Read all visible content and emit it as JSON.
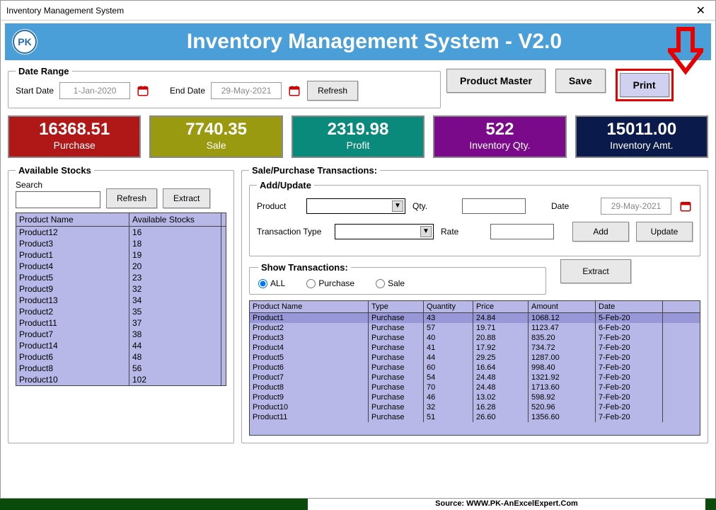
{
  "window": {
    "title": "Inventory Management System"
  },
  "banner": {
    "title": "Inventory Management System - V2.0"
  },
  "dateRange": {
    "legend": "Date Range",
    "startLabel": "Start Date",
    "startValue": "1-Jan-2020",
    "endLabel": "End Date",
    "endValue": "29-May-2021",
    "refresh": "Refresh"
  },
  "topButtons": {
    "productMaster": "Product Master",
    "save": "Save",
    "print": "Print"
  },
  "kpis": [
    {
      "value": "16368.51",
      "label": "Purchase",
      "bg": "#b01818"
    },
    {
      "value": "7740.35",
      "label": "Sale",
      "bg": "#9a9a10"
    },
    {
      "value": "2319.98",
      "label": "Profit",
      "bg": "#0a8a7a"
    },
    {
      "value": "522",
      "label": "Inventory Qty.",
      "bg": "#7a0a8a"
    },
    {
      "value": "15011.00",
      "label": "Inventory Amt.",
      "bg": "#0a1a4a"
    }
  ],
  "stocks": {
    "legend": "Available Stocks",
    "searchLabel": "Search",
    "refresh": "Refresh",
    "extract": "Extract",
    "headers": [
      "Product Name",
      "Available Stocks"
    ],
    "rows": [
      [
        "Product12",
        "16"
      ],
      [
        "Product3",
        "18"
      ],
      [
        "Product1",
        "19"
      ],
      [
        "Product4",
        "20"
      ],
      [
        "Product5",
        "23"
      ],
      [
        "Product9",
        "32"
      ],
      [
        "Product13",
        "34"
      ],
      [
        "Product2",
        "35"
      ],
      [
        "Product11",
        "37"
      ],
      [
        "Product7",
        "38"
      ],
      [
        "Product14",
        "44"
      ],
      [
        "Product6",
        "48"
      ],
      [
        "Product8",
        "56"
      ],
      [
        "Product10",
        "102"
      ]
    ]
  },
  "trans": {
    "legend": "Sale/Purchase Transactions:",
    "addLegend": "Add/Update",
    "productLabel": "Product",
    "qtyLabel": "Qty.",
    "dateLabel": "Date",
    "dateValue": "29-May-2021",
    "typeLabel": "Transaction Type",
    "rateLabel": "Rate",
    "add": "Add",
    "update": "Update",
    "showLegend": "Show Transactions:",
    "filterAll": "ALL",
    "filterPurchase": "Purchase",
    "filterSale": "Sale",
    "extract": "Extract",
    "headers": [
      "Product Name",
      "Type",
      "Quantity",
      "Price",
      "Amount",
      "Date"
    ],
    "rows": [
      [
        "Product1",
        "Purchase",
        "43",
        "24.84",
        "1068.12",
        "5-Feb-20"
      ],
      [
        "Product2",
        "Purchase",
        "57",
        "19.71",
        "1123.47",
        "6-Feb-20"
      ],
      [
        "Product3",
        "Purchase",
        "40",
        "20.88",
        "835.20",
        "7-Feb-20"
      ],
      [
        "Product4",
        "Purchase",
        "41",
        "17.92",
        "734.72",
        "7-Feb-20"
      ],
      [
        "Product5",
        "Purchase",
        "44",
        "29.25",
        "1287.00",
        "7-Feb-20"
      ],
      [
        "Product6",
        "Purchase",
        "60",
        "16.64",
        "998.40",
        "7-Feb-20"
      ],
      [
        "Product7",
        "Purchase",
        "54",
        "24.48",
        "1321.92",
        "7-Feb-20"
      ],
      [
        "Product8",
        "Purchase",
        "70",
        "24.48",
        "1713.60",
        "7-Feb-20"
      ],
      [
        "Product9",
        "Purchase",
        "46",
        "13.02",
        "598.92",
        "7-Feb-20"
      ],
      [
        "Product10",
        "Purchase",
        "32",
        "16.28",
        "520.96",
        "7-Feb-20"
      ],
      [
        "Product11",
        "Purchase",
        "51",
        "26.60",
        "1356.60",
        "7-Feb-20"
      ]
    ]
  },
  "footer": {
    "source": "Source: WWW.PK-AnExcelExpert.Com"
  },
  "colors": {
    "highlight": "#e60000",
    "banner": "#4a9fd8",
    "gridbg": "#b8b8e8"
  }
}
